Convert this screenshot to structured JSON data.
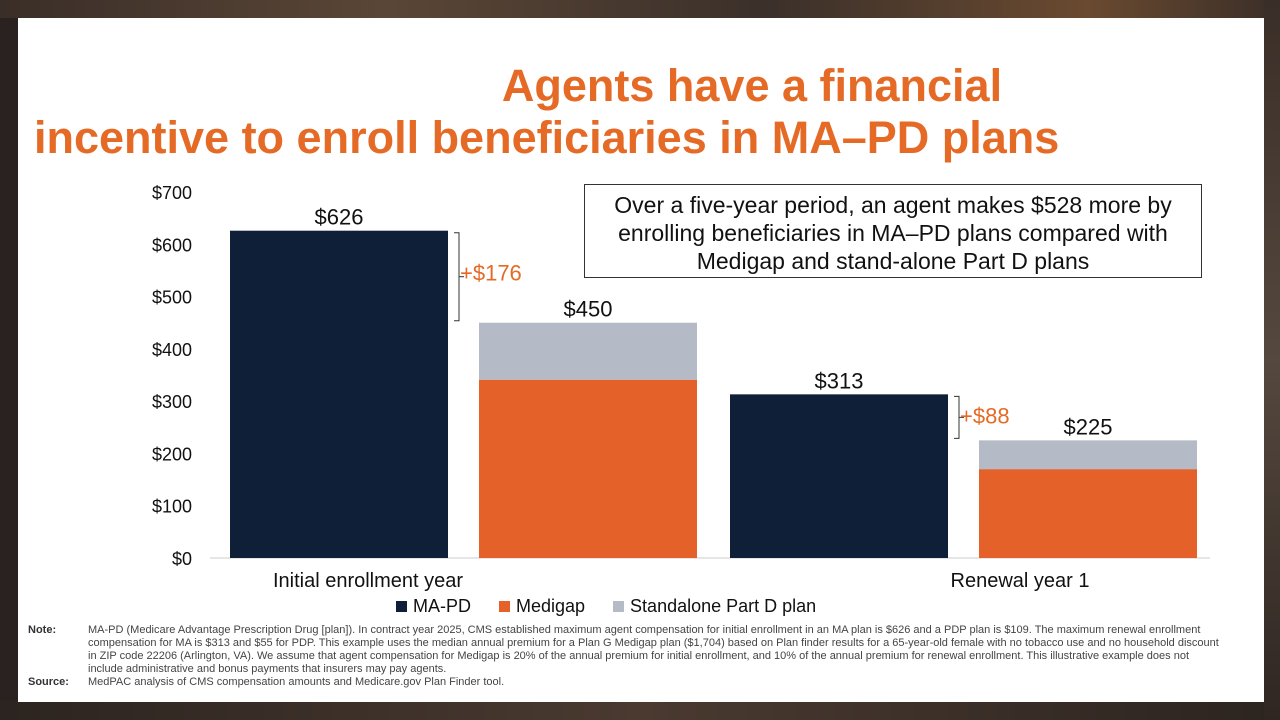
{
  "slide": {
    "title_line1": "Agents have a financial",
    "title_line2": "incentive to enroll beneficiaries in MA–PD plans",
    "callout": "Over a five-year period, an agent makes $528 more by enrolling beneficiaries in MA–PD plans compared with Medigap and stand-alone Part D plans",
    "note_label": "Note:",
    "note_text": "MA-PD (Medicare Advantage Prescription Drug [plan]). In contract year 2025, CMS established maximum agent compensation for initial enrollment in an MA plan is $626 and a PDP plan is $109. The maximum renewal enrollment compensation for MA is $313 and $55 for PDP. This example uses the median annual premium for a Plan G Medigap plan ($1,704) based on Plan finder results for a 65-year-old female with no tobacco use and no household discount in ZIP code 22206 (Arlington, VA). We assume that agent compensation for Medigap is 20% of the annual premium for initial enrollment, and 10% of the annual premium for renewal enrollment. This illustrative example does not include administrative and bonus payments that insurers may pay agents.",
    "source_label": "Source:",
    "source_text": "MedPAC analysis of CMS compensation amounts and Medicare.gov Plan Finder tool."
  },
  "chart_data": {
    "type": "bar",
    "categories": [
      "Initial enrollment year",
      "Renewal year 1"
    ],
    "series": [
      {
        "name": "MA-PD",
        "color": "#0f1f38",
        "values": [
          626,
          313
        ]
      },
      {
        "name": "Medigap",
        "color": "#e4622a",
        "values": [
          341,
          170
        ]
      },
      {
        "name": "Standalone Part D plan",
        "color": "#b4bbc6",
        "values": [
          109,
          55
        ]
      }
    ],
    "totals": {
      "ma_pd": [
        "$626",
        "$313"
      ],
      "medigap_pdp": [
        "$450",
        "$225"
      ]
    },
    "differences": [
      "+$176",
      "+$88"
    ],
    "difference_color": "#e56a25",
    "ylim": [
      0,
      700
    ],
    "yticks": [
      0,
      100,
      200,
      300,
      400,
      500,
      600,
      700
    ],
    "ytick_labels": [
      "$0",
      "$100",
      "$200",
      "$300",
      "$400",
      "$500",
      "$600",
      "$700"
    ],
    "legend_position": "bottom",
    "grid": false
  }
}
